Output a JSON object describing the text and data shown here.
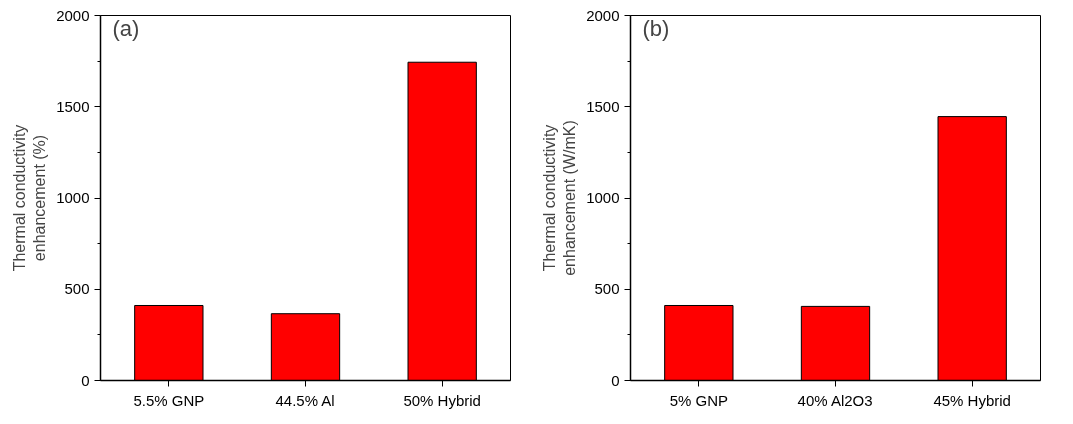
{
  "chart_data": [
    {
      "type": "bar",
      "categories": [
        "5.5% GNP",
        "44.5% Al",
        "50% Hybrid"
      ],
      "values": [
        411,
        366,
        1744
      ],
      "color": "#ff0000",
      "ylabel": "Thermal conductivity\nenhancement (%)",
      "annotations": [
        "(a)"
      ],
      "ylim": [
        0,
        2000
      ],
      "yticks": [
        0,
        {
          "value": 250,
          "label": null
        },
        500,
        {
          "value": 750,
          "label": null
        },
        1000,
        {
          "value": 1250,
          "label": null
        },
        1500,
        {
          "value": 1750,
          "label": null
        },
        2000
      ],
      "grid": false
    },
    {
      "type": "bar",
      "categories": [
        "5% GNP",
        "40% Al2O3",
        "45% Hybrid"
      ],
      "values": [
        411,
        406,
        1446
      ],
      "color": "#ff0000",
      "ylabel": "Thermal conductivity\nenhancement (W/mK)",
      "annotations": [
        "(b)"
      ],
      "ylim": [
        0,
        2000
      ],
      "yticks": [
        0,
        {
          "value": 250,
          "label": null
        },
        500,
        {
          "value": 750,
          "label": null
        },
        1000,
        {
          "value": 1250,
          "label": null
        },
        1500,
        {
          "value": 1750,
          "label": null
        },
        2000
      ],
      "grid": false
    }
  ]
}
